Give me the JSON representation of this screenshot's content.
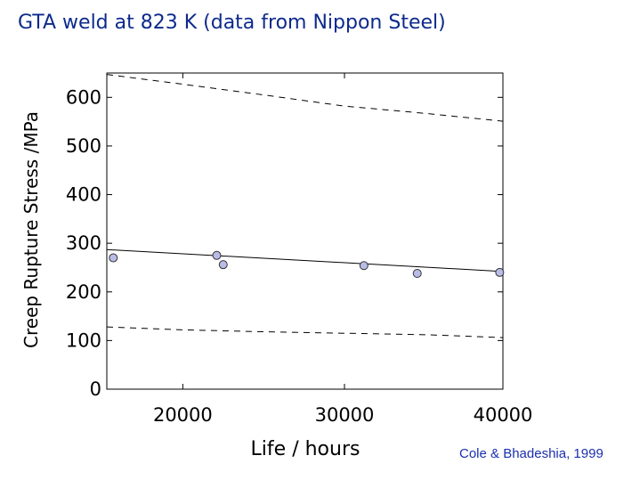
{
  "title": "GTA weld at 823 K (data from Nippon Steel)",
  "credit": "Cole & Bhadeshia, 1999",
  "chart_data": {
    "type": "scatter",
    "title": "GTA weld at 823 K (data from Nippon Steel)",
    "xlabel": "Life / hours",
    "ylabel": "Creep Rupture Stress /MPa",
    "xlim": [
      15300,
      39800
    ],
    "ylim": [
      0,
      650
    ],
    "x_ticks": [
      20000,
      30000,
      40000
    ],
    "x_tick_labels": [
      "20000",
      "30000",
      "40000"
    ],
    "y_ticks": [
      0,
      100,
      200,
      300,
      400,
      500,
      600
    ],
    "y_tick_labels": [
      "0",
      "100",
      "200",
      "300",
      "400",
      "500",
      "600"
    ],
    "grid": false,
    "points": [
      {
        "x": 15700,
        "y": 270
      },
      {
        "x": 22100,
        "y": 275
      },
      {
        "x": 22500,
        "y": 256
      },
      {
        "x": 31200,
        "y": 254
      },
      {
        "x": 34500,
        "y": 238
      },
      {
        "x": 39600,
        "y": 240
      }
    ],
    "fit_line": [
      {
        "x": 15300,
        "y": 287
      },
      {
        "x": 39800,
        "y": 242
      }
    ],
    "upper_bound": [
      {
        "x": 15300,
        "y": 647
      },
      {
        "x": 20000,
        "y": 627
      },
      {
        "x": 25000,
        "y": 605
      },
      {
        "x": 30000,
        "y": 582
      },
      {
        "x": 35000,
        "y": 567
      },
      {
        "x": 39800,
        "y": 551
      }
    ],
    "lower_bound": [
      {
        "x": 15300,
        "y": 128
      },
      {
        "x": 20000,
        "y": 122
      },
      {
        "x": 25000,
        "y": 118
      },
      {
        "x": 30000,
        "y": 115
      },
      {
        "x": 35000,
        "y": 112
      },
      {
        "x": 39800,
        "y": 106
      }
    ],
    "colors": {
      "title": "#0d2a8c",
      "credit": "#1a2fb0",
      "marker_fill": "#b8bce6",
      "marker_stroke": "#333333"
    }
  }
}
